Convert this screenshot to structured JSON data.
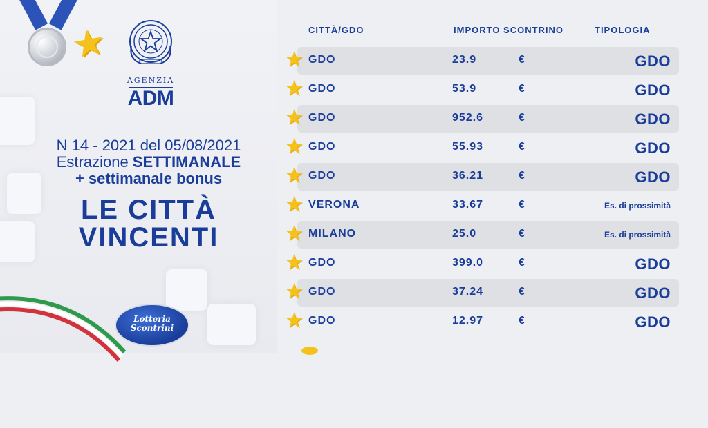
{
  "header": {
    "agency_small": "AGENZIA",
    "agency_big": "ADM"
  },
  "info": {
    "line1": "N 14 - 2021 del 05/08/2021",
    "line2_prefix": "Estrazione ",
    "line2_bold": "SETTIMANALE",
    "line3": "+ settimanale bonus",
    "title_line1": "LE CITTÀ",
    "title_line2": "VINCENTI"
  },
  "logo": {
    "line1": "Lotteria",
    "line2": "Scontrini"
  },
  "table": {
    "columns": [
      "CITTÀ/GDO",
      "IMPORTO SCONTRINO",
      "TIPOLOGIA"
    ],
    "rows": [
      {
        "city": "GDO",
        "amount": "23.9",
        "currency": "€",
        "type": "GDO"
      },
      {
        "city": "GDO",
        "amount": "53.9",
        "currency": "€",
        "type": "GDO"
      },
      {
        "city": "GDO",
        "amount": "952.6",
        "currency": "€",
        "type": "GDO"
      },
      {
        "city": "GDO",
        "amount": "55.93",
        "currency": "€",
        "type": "GDO"
      },
      {
        "city": "GDO",
        "amount": "36.21",
        "currency": "€",
        "type": "GDO"
      },
      {
        "city": "VERONA",
        "amount": "33.67",
        "currency": "€",
        "type": "Es. di prossimità"
      },
      {
        "city": "MILANO",
        "amount": "25.0",
        "currency": "€",
        "type": "Es. di prossimità"
      },
      {
        "city": "GDO",
        "amount": "399.0",
        "currency": "€",
        "type": "GDO"
      },
      {
        "city": "GDO",
        "amount": "37.24",
        "currency": "€",
        "type": "GDO"
      },
      {
        "city": "GDO",
        "amount": "12.97",
        "currency": "€",
        "type": "GDO"
      }
    ]
  },
  "colors": {
    "brand_blue": "#1a3d9a",
    "star_yellow": "#f4c21b",
    "row_shade": "#dfe0e4",
    "background": "#eeeff3"
  },
  "icons": [
    "medal-icon",
    "star-icon",
    "republic-emblem-icon",
    "lotteria-logo-icon",
    "italian-flag-ribbon-icon"
  ]
}
